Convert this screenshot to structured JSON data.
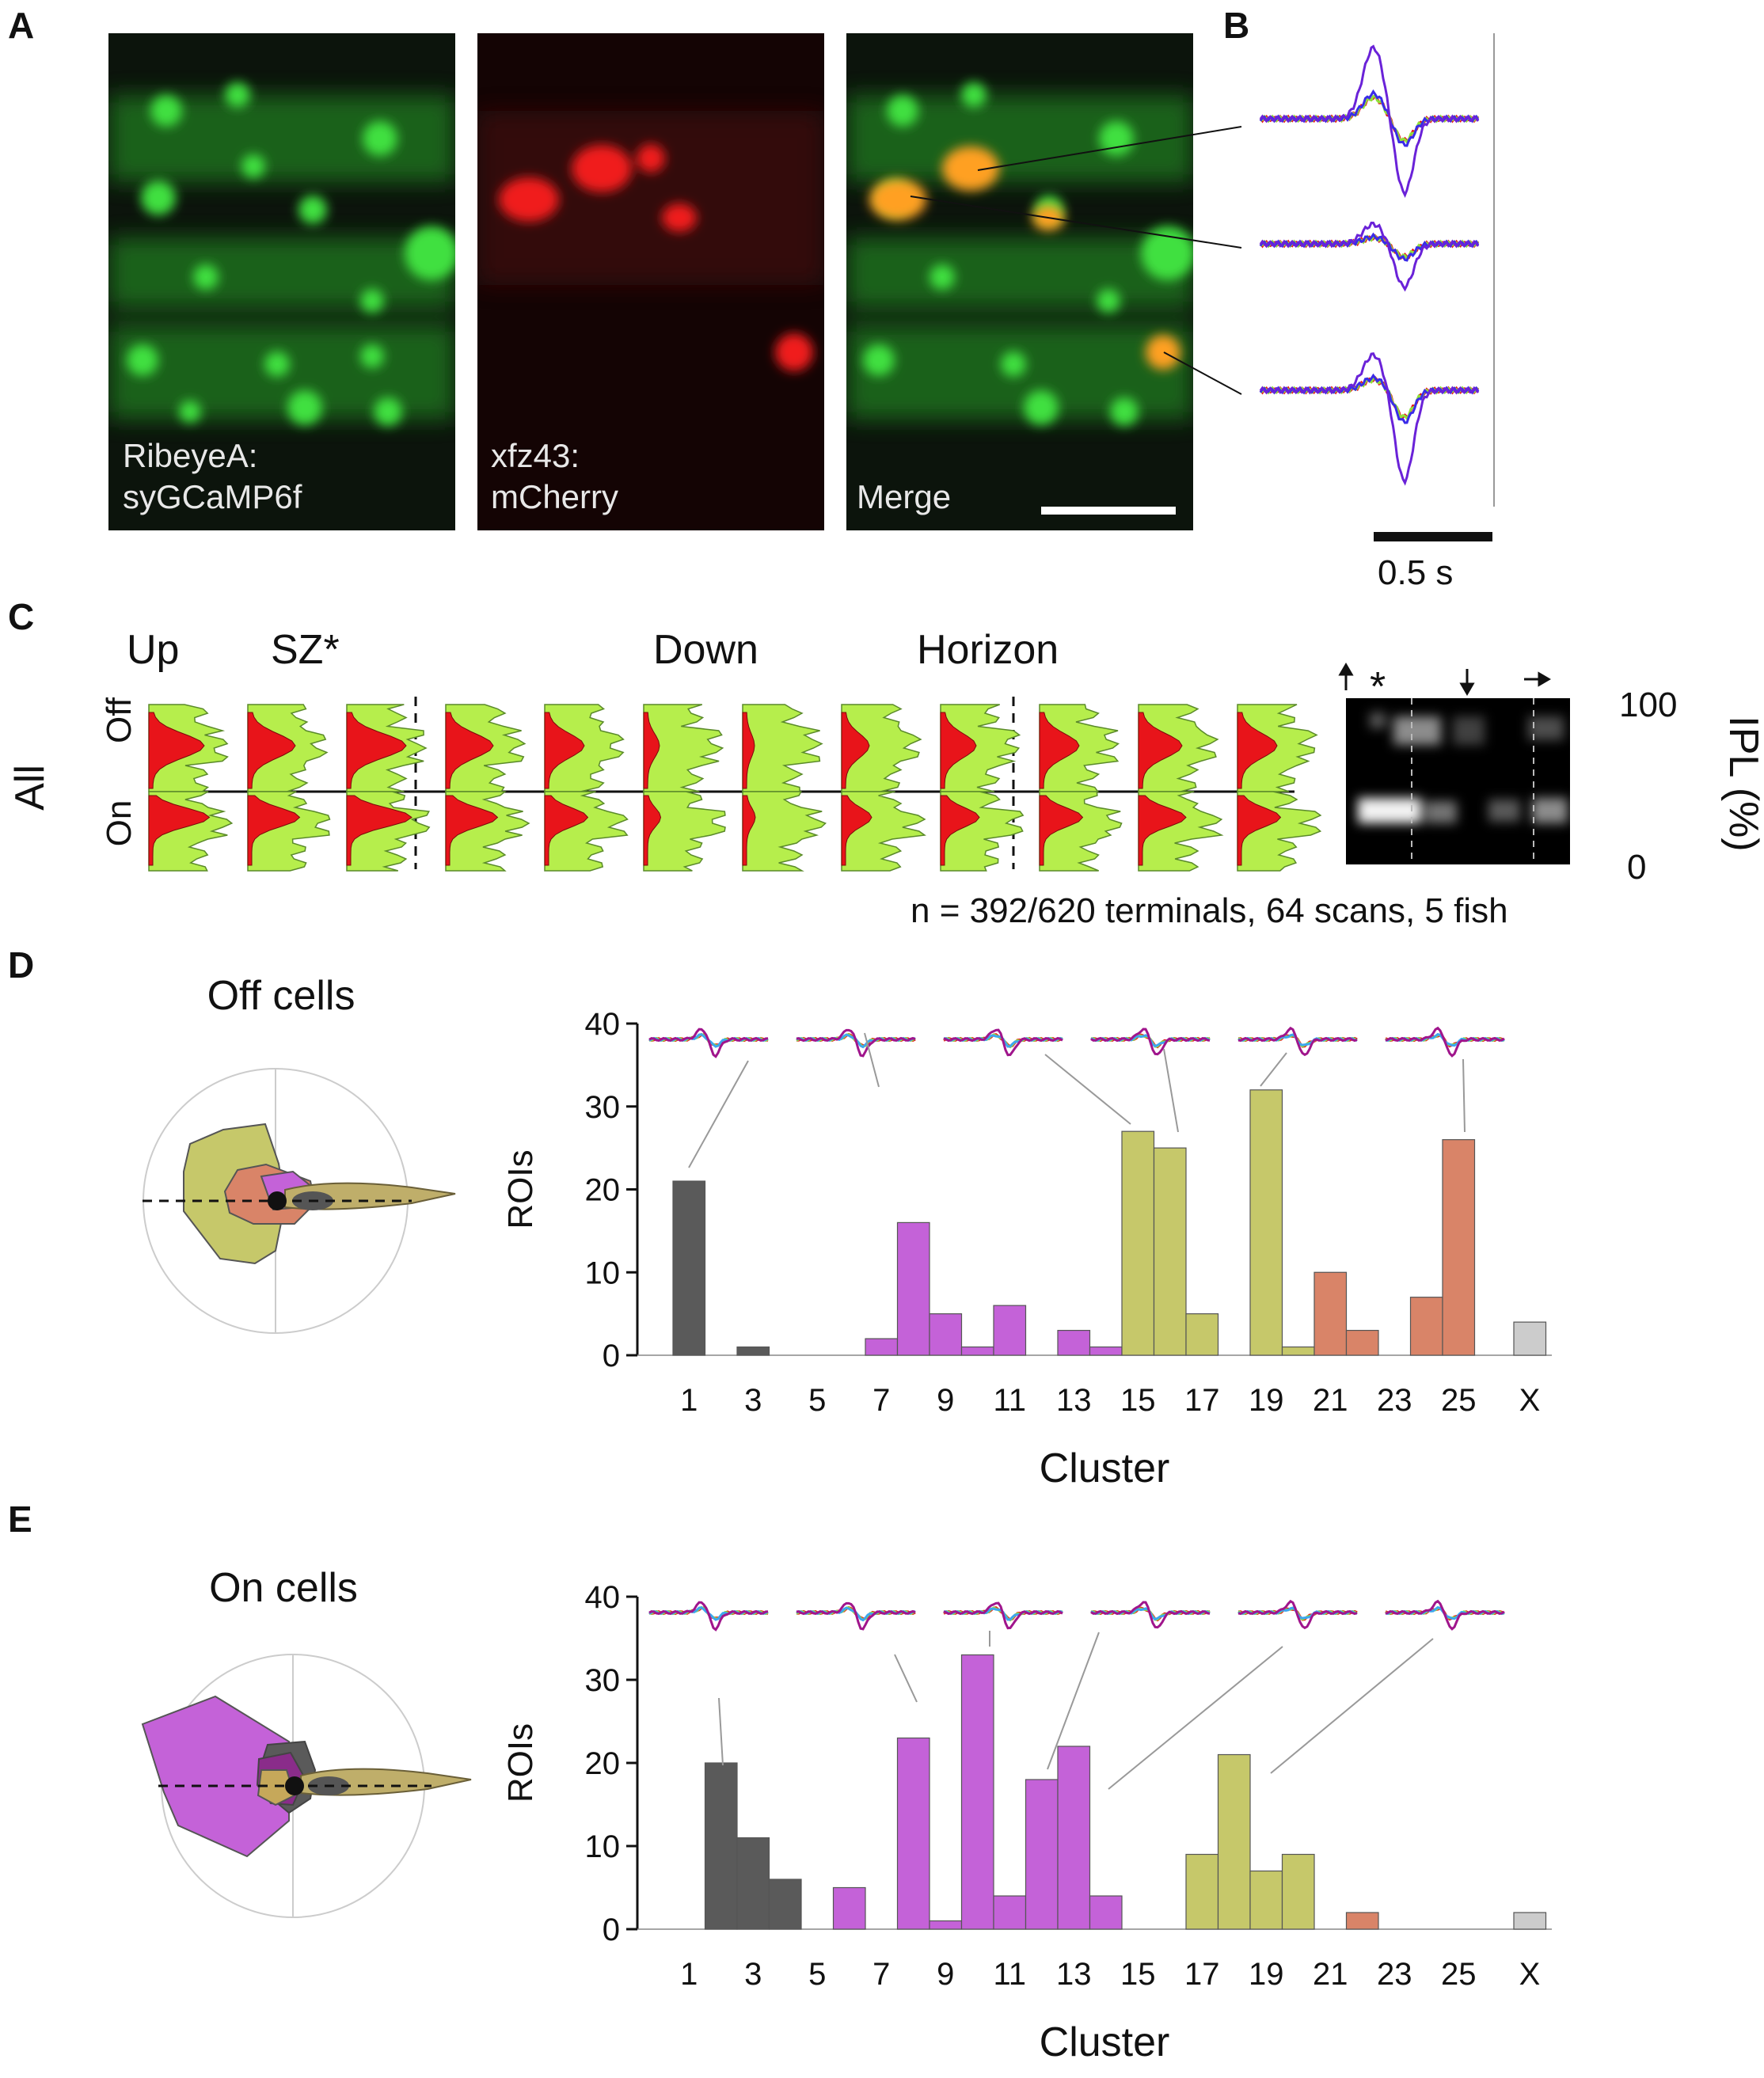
{
  "panels": {
    "a": {
      "letter": "A",
      "images": [
        {
          "label_line1": "RibeyeA:",
          "label_line2": "syGCaMP6f"
        },
        {
          "label_line1": "xfz43:",
          "label_line2": "mCherry"
        },
        {
          "label_line1": "Merge",
          "label_line2": ""
        }
      ]
    },
    "b": {
      "letter": "B",
      "scale_label": "0.5 s"
    },
    "c": {
      "letter": "C",
      "row_label": "All",
      "off_label": "Off",
      "on_label": "On",
      "direction_labels": [
        "Up",
        "SZ*",
        "Down",
        "Horizon"
      ],
      "heatmap_star": "*",
      "ipl_axis_label": "IPL (%)",
      "ipl_tick_top": "100",
      "ipl_tick_bottom": "0",
      "note": "n = 392/620 terminals, 64 scans, 5 fish"
    },
    "d": {
      "letter": "D",
      "title": "Off cells"
    },
    "e": {
      "letter": "E",
      "title": "On cells"
    }
  },
  "colors": {
    "dark_gray": "#5a5a5a",
    "magenta": "#c462d8",
    "olive": "#c6c86a",
    "salmon": "#d98468",
    "light_gray": "#cccccc",
    "red": "#e8141a",
    "lime": "#8fe23a",
    "blue": "#3a2be8",
    "violet": "#6a22d8",
    "sky": "#3ea6ee",
    "purple": "#a0158c"
  },
  "chart_data": [
    {
      "type": "bar",
      "panel": "D",
      "xlabel": "Cluster",
      "ylabel": "ROIs",
      "ylim": [
        0,
        40
      ],
      "yticks": [
        0,
        10,
        20,
        30,
        40
      ],
      "xtick_labels": [
        "1",
        "3",
        "5",
        "7",
        "9",
        "11",
        "13",
        "15",
        "17",
        "19",
        "21",
        "23",
        "25",
        "X"
      ],
      "categories": [
        "1",
        "2",
        "3",
        "4",
        "5",
        "6",
        "7",
        "8",
        "9",
        "10",
        "11",
        "12",
        "13",
        "14",
        "15",
        "16",
        "17",
        "18",
        "19",
        "20",
        "21",
        "22",
        "23",
        "24",
        "25",
        "X"
      ],
      "values": [
        21,
        0,
        1,
        0,
        0,
        0,
        2,
        16,
        5,
        1,
        6,
        0,
        3,
        1,
        27,
        25,
        5,
        0,
        32,
        1,
        10,
        3,
        0,
        7,
        26,
        4
      ],
      "color_groups": [
        "dark",
        "dark",
        "dark",
        "dark",
        "dark",
        "mag",
        "mag",
        "mag",
        "mag",
        "mag",
        "mag",
        "mag",
        "mag",
        "mag",
        "olive",
        "olive",
        "olive",
        "olive",
        "olive",
        "olive",
        "salmon",
        "salmon",
        "salmon",
        "salmon",
        "salmon",
        "gray"
      ]
    },
    {
      "type": "bar",
      "panel": "E",
      "xlabel": "Cluster",
      "ylabel": "ROIs",
      "ylim": [
        0,
        40
      ],
      "yticks": [
        0,
        10,
        20,
        30,
        40
      ],
      "xtick_labels": [
        "1",
        "3",
        "5",
        "7",
        "9",
        "11",
        "13",
        "15",
        "17",
        "19",
        "21",
        "23",
        "25",
        "X"
      ],
      "categories": [
        "1",
        "2",
        "3",
        "4",
        "5",
        "6",
        "7",
        "8",
        "9",
        "10",
        "11",
        "12",
        "13",
        "14",
        "15",
        "16",
        "17",
        "18",
        "19",
        "20",
        "21",
        "22",
        "23",
        "24",
        "25",
        "X"
      ],
      "values": [
        0,
        20,
        11,
        6,
        0,
        5,
        0,
        23,
        1,
        33,
        4,
        18,
        22,
        4,
        0,
        0,
        9,
        21,
        7,
        9,
        0,
        2,
        0,
        0,
        0,
        2
      ],
      "color_groups": [
        "dark",
        "dark",
        "dark",
        "dark",
        "dark",
        "mag",
        "mag",
        "mag",
        "mag",
        "mag",
        "mag",
        "mag",
        "mag",
        "mag",
        "olive",
        "olive",
        "olive",
        "olive",
        "olive",
        "olive",
        "salmon",
        "salmon",
        "salmon",
        "salmon",
        "salmon",
        "gray"
      ]
    }
  ]
}
